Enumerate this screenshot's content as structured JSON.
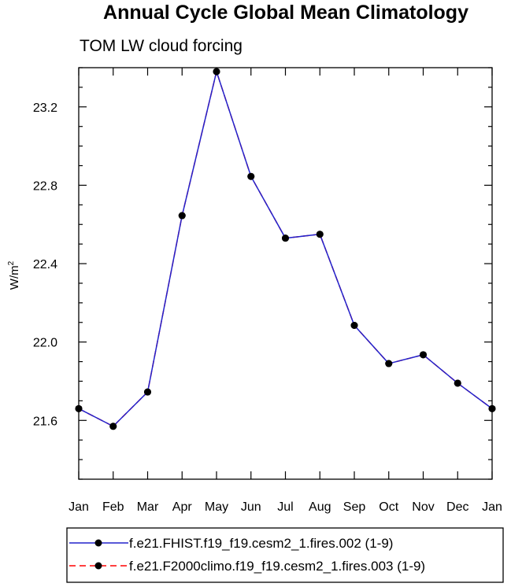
{
  "chart_data": {
    "type": "line",
    "title": "Annual Cycle Global Mean Climatology",
    "subtitle": "TOM LW cloud forcing",
    "ylabel": "W/m",
    "ylabel_superscript": "2",
    "xlabel": "",
    "categories": [
      "Jan",
      "Feb",
      "Mar",
      "Apr",
      "May",
      "Jun",
      "Jul",
      "Aug",
      "Sep",
      "Oct",
      "Nov",
      "Dec",
      "Jan"
    ],
    "ylim": [
      21.3,
      23.4
    ],
    "yticks": [
      "21.6",
      "22.0",
      "22.4",
      "22.8",
      "23.2"
    ],
    "ytick_values": [
      21.6,
      22.0,
      22.4,
      22.8,
      23.2
    ],
    "series": [
      {
        "name": "f.e21.FHIST.f19_f19.cesm2_1.fires.002 (1-9)",
        "color": "#2222cc",
        "line_style": "solid",
        "marker": "circle",
        "values": [
          21.66,
          21.57,
          21.745,
          22.645,
          23.38,
          22.845,
          22.53,
          22.55,
          22.085,
          21.89,
          21.935,
          21.79,
          21.66
        ]
      },
      {
        "name": "f.e21.F2000climo.f19_f19.cesm2_1.fires.003 (1-9)",
        "color": "#ff0000",
        "line_style": "dashed",
        "marker": "circle",
        "values": [
          21.66,
          21.57,
          21.745,
          22.645,
          23.38,
          22.845,
          22.53,
          22.55,
          22.085,
          21.89,
          21.935,
          21.79,
          21.66
        ]
      }
    ],
    "legend_position": "bottom",
    "grid": false
  }
}
